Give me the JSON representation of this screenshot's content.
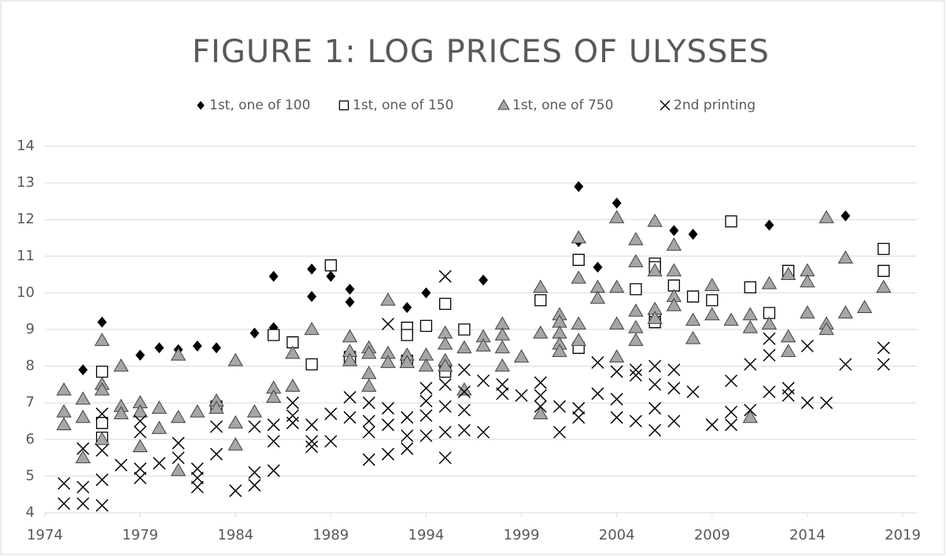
{
  "chart_data": {
    "type": "scatter",
    "title": "FIGURE 1: LOG PRICES OF ULYSSES",
    "xlim": [
      1974,
      2019
    ],
    "xticks": [
      1974,
      1979,
      1984,
      1989,
      1994,
      1999,
      2004,
      2009,
      2014,
      2019
    ],
    "ylim": [
      4,
      14
    ],
    "yticks": [
      4,
      5,
      6,
      7,
      8,
      9,
      10,
      11,
      12,
      13,
      14
    ],
    "grid": true,
    "legend": "top",
    "series": [
      {
        "name": "1st, one of 100",
        "marker": "diamond",
        "color": "#000000",
        "x": [
          1976,
          1977,
          1977,
          1979,
          1980,
          1981,
          1982,
          1983,
          1985,
          1986,
          1986,
          1988,
          1988,
          1989,
          1990,
          1990,
          1993,
          1994,
          1997,
          2002,
          2002,
          2003,
          2004,
          2006,
          2007,
          2008,
          2012,
          2016
        ],
        "values": [
          7.9,
          9.2,
          7.85,
          8.3,
          8.5,
          8.45,
          8.55,
          8.5,
          8.9,
          10.45,
          9.05,
          10.65,
          9.9,
          10.45,
          10.1,
          9.75,
          9.6,
          10.0,
          10.35,
          12.9,
          11.4,
          10.7,
          12.45,
          9.3,
          11.7,
          11.6,
          11.85,
          12.1
        ]
      },
      {
        "name": "1st, one of 150",
        "marker": "square",
        "color": "#ffffff",
        "x": [
          1977,
          1977,
          1977,
          1983,
          1986,
          1987,
          1988,
          1989,
          1990,
          1990,
          1993,
          1993,
          1993,
          1994,
          1995,
          1995,
          1996,
          2000,
          2002,
          2002,
          2005,
          2006,
          2006,
          2006,
          2006,
          2007,
          2008,
          2009,
          2010,
          2011,
          2012,
          2013,
          2018,
          2018
        ],
        "values": [
          7.85,
          6.45,
          6.05,
          6.9,
          8.85,
          8.65,
          8.05,
          10.75,
          8.25,
          8.2,
          9.05,
          8.85,
          8.15,
          9.1,
          9.7,
          7.85,
          9.0,
          9.8,
          10.9,
          8.5,
          10.1,
          10.8,
          10.7,
          9.3,
          9.2,
          10.2,
          9.9,
          9.8,
          11.95,
          10.15,
          9.45,
          10.6,
          11.2,
          10.6
        ]
      },
      {
        "name": "1st, one of 750",
        "marker": "triangle",
        "color": "#a6a6a6",
        "x": [
          1975,
          1975,
          1975,
          1976,
          1976,
          1976,
          1977,
          1977,
          1977,
          1977,
          1978,
          1978,
          1978,
          1979,
          1979,
          1979,
          1980,
          1980,
          1981,
          1981,
          1981,
          1982,
          1983,
          1983,
          1984,
          1984,
          1984,
          1985,
          1986,
          1986,
          1987,
          1987,
          1988,
          1990,
          1990,
          1990,
          1991,
          1991,
          1991,
          1991,
          1992,
          1992,
          1992,
          1993,
          1993,
          1994,
          1994,
          1995,
          1995,
          1995,
          1995,
          1996,
          1996,
          1997,
          1997,
          1998,
          1998,
          1998,
          1998,
          1999,
          2000,
          2000,
          2000,
          2001,
          2001,
          2001,
          2001,
          2001,
          2002,
          2002,
          2002,
          2002,
          2003,
          2003,
          2004,
          2004,
          2004,
          2004,
          2005,
          2005,
          2005,
          2005,
          2005,
          2006,
          2006,
          2006,
          2006,
          2007,
          2007,
          2007,
          2007,
          2008,
          2008,
          2009,
          2009,
          2010,
          2011,
          2011,
          2011,
          2012,
          2012,
          2013,
          2013,
          2013,
          2014,
          2014,
          2014,
          2015,
          2015,
          2015,
          2016,
          2016,
          2017,
          2018
        ],
        "values": [
          7.35,
          6.75,
          6.4,
          7.1,
          6.6,
          5.5,
          8.7,
          7.5,
          7.35,
          6.0,
          8.0,
          6.9,
          6.7,
          7.0,
          6.75,
          5.8,
          6.85,
          6.3,
          8.3,
          6.6,
          5.15,
          6.75,
          7.05,
          6.85,
          8.15,
          6.45,
          5.85,
          6.75,
          7.4,
          7.15,
          8.35,
          7.45,
          9.0,
          8.8,
          8.4,
          8.15,
          8.5,
          8.35,
          7.8,
          7.45,
          9.8,
          8.35,
          8.1,
          8.3,
          8.1,
          8.3,
          8.0,
          8.9,
          8.6,
          8.15,
          8.0,
          8.5,
          7.35,
          8.8,
          8.55,
          9.15,
          8.85,
          8.5,
          8.0,
          8.25,
          10.15,
          8.9,
          6.7,
          9.4,
          9.2,
          8.9,
          8.6,
          8.4,
          11.5,
          10.4,
          9.15,
          8.7,
          10.15,
          9.85,
          12.05,
          10.15,
          9.15,
          8.25,
          11.45,
          10.85,
          9.5,
          9.05,
          8.7,
          11.95,
          10.6,
          9.55,
          9.3,
          11.3,
          10.6,
          9.9,
          9.65,
          9.25,
          8.75,
          10.2,
          9.4,
          9.25,
          9.4,
          9.05,
          6.6,
          10.25,
          9.15,
          10.5,
          8.8,
          8.4,
          10.6,
          10.3,
          9.45,
          12.05,
          9.15,
          9.0,
          10.95,
          9.45,
          9.6,
          10.15
        ]
      },
      {
        "name": "2nd printing",
        "marker": "x",
        "color": "#000000",
        "x": [
          1975,
          1975,
          1976,
          1976,
          1976,
          1977,
          1977,
          1977,
          1977,
          1978,
          1979,
          1979,
          1979,
          1979,
          1980,
          1981,
          1981,
          1982,
          1982,
          1982,
          1983,
          1983,
          1984,
          1985,
          1985,
          1985,
          1986,
          1986,
          1986,
          1987,
          1987,
          1987,
          1988,
          1988,
          1988,
          1989,
          1989,
          1990,
          1990,
          1991,
          1991,
          1991,
          1991,
          1992,
          1992,
          1992,
          1992,
          1993,
          1993,
          1993,
          1994,
          1994,
          1994,
          1994,
          1995,
          1995,
          1995,
          1995,
          1995,
          1996,
          1996,
          1996,
          1996,
          1997,
          1997,
          1998,
          1998,
          1999,
          2000,
          2000,
          2000,
          2001,
          2001,
          2002,
          2002,
          2003,
          2003,
          2004,
          2004,
          2004,
          2005,
          2005,
          2005,
          2006,
          2006,
          2006,
          2006,
          2007,
          2007,
          2007,
          2008,
          2009,
          2010,
          2010,
          2010,
          2011,
          2011,
          2012,
          2012,
          2012,
          2013,
          2013,
          2014,
          2014,
          2015,
          2016,
          2018,
          2018
        ],
        "values": [
          4.8,
          4.25,
          5.75,
          4.7,
          4.25,
          6.7,
          5.7,
          4.9,
          4.2,
          5.3,
          6.5,
          6.2,
          5.2,
          4.95,
          5.35,
          5.9,
          5.5,
          5.2,
          4.95,
          4.7,
          6.35,
          5.6,
          4.6,
          6.35,
          5.1,
          4.75,
          6.4,
          5.95,
          5.15,
          7.0,
          6.65,
          6.45,
          6.4,
          5.95,
          5.8,
          6.7,
          5.95,
          7.15,
          6.6,
          7.0,
          6.5,
          6.2,
          5.45,
          9.15,
          6.85,
          6.4,
          5.6,
          6.6,
          6.1,
          5.75,
          7.4,
          7.05,
          6.65,
          6.1,
          10.45,
          7.5,
          6.9,
          6.2,
          5.5,
          7.9,
          7.3,
          6.8,
          6.25,
          7.6,
          6.2,
          7.5,
          7.25,
          7.2,
          7.55,
          7.2,
          6.9,
          6.9,
          6.2,
          6.85,
          6.6,
          8.1,
          7.25,
          7.85,
          7.1,
          6.6,
          7.9,
          7.75,
          6.5,
          8.0,
          7.5,
          6.85,
          6.25,
          7.9,
          7.4,
          6.5,
          7.3,
          6.4,
          7.6,
          6.75,
          6.4,
          8.05,
          6.8,
          8.75,
          8.3,
          7.3,
          7.4,
          7.2,
          8.55,
          7.0,
          7.0,
          8.05,
          8.5,
          8.05
        ]
      }
    ]
  }
}
